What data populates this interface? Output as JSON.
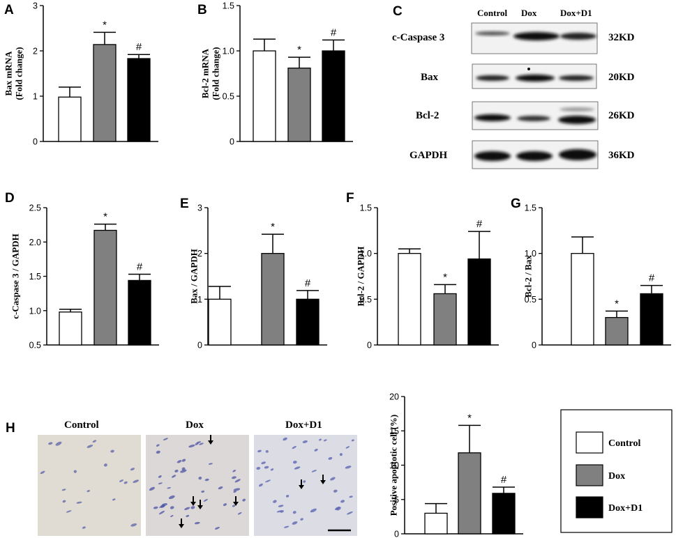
{
  "colors": {
    "Control": "#ffffff",
    "Dox": "#808080",
    "Dox+D1": "#000000"
  },
  "chart_data": [
    {
      "panel": "A",
      "type": "bar",
      "ylabel": "Bax mRNA\n(Fold change)",
      "categories": [
        "Control",
        "Dox",
        "Dox+D1"
      ],
      "values": [
        0.98,
        2.14,
        1.83
      ],
      "errors": [
        0.22,
        0.27,
        0.09
      ],
      "ylim": [
        0,
        3
      ],
      "yticks": [
        "0",
        "1",
        "2",
        "3"
      ],
      "marks": [
        "",
        "*",
        "#"
      ]
    },
    {
      "panel": "B",
      "type": "bar",
      "ylabel": "Bcl-2 mRNA\n(Fold change)",
      "categories": [
        "Control",
        "Dox",
        "Dox+D1"
      ],
      "values": [
        1.0,
        0.81,
        1.0
      ],
      "errors": [
        0.13,
        0.12,
        0.12
      ],
      "ylim": [
        0,
        1.5
      ],
      "yticks": [
        "0",
        "0.5",
        "1.0",
        "1.5"
      ],
      "marks": [
        "",
        "*",
        "#"
      ]
    },
    {
      "panel": "D",
      "type": "bar",
      "ylabel": "c-Caspase 3 / GAPDH",
      "categories": [
        "Control",
        "Dox",
        "Dox+D1"
      ],
      "values": [
        0.98,
        2.17,
        1.44
      ],
      "errors": [
        0.04,
        0.09,
        0.09
      ],
      "ylim": [
        0.5,
        2.5
      ],
      "yticks": [
        "0.5",
        "1.0",
        "1.5",
        "2.0",
        "2.5"
      ],
      "marks": [
        "",
        "*",
        "#"
      ]
    },
    {
      "panel": "E",
      "type": "bar",
      "ylabel": "Bax / GAPDH",
      "categories": [
        "Control",
        "Dox",
        "Dox+D1"
      ],
      "values": [
        1.0,
        2.0,
        1.0
      ],
      "errors": [
        0.28,
        0.42,
        0.19
      ],
      "ylim": [
        0,
        3
      ],
      "yticks": [
        "0",
        "1",
        "2",
        "3"
      ],
      "marks": [
        "",
        "*",
        "#"
      ]
    },
    {
      "panel": "F",
      "type": "bar",
      "ylabel": "Bcl-2 / GAPDH",
      "categories": [
        "Control",
        "Dox",
        "Dox+D1"
      ],
      "values": [
        1.0,
        0.56,
        0.94
      ],
      "errors": [
        0.05,
        0.1,
        0.3
      ],
      "ylim": [
        0,
        1.5
      ],
      "yticks": [
        "0",
        "0.5",
        "1.0",
        "1.5"
      ],
      "marks": [
        "",
        "*",
        "#"
      ]
    },
    {
      "panel": "G",
      "type": "bar",
      "ylabel": "Bcl-2 / Bax",
      "categories": [
        "Control",
        "Dox",
        "Dox+D1"
      ],
      "values": [
        1.0,
        0.3,
        0.56
      ],
      "errors": [
        0.18,
        0.07,
        0.09
      ],
      "ylim": [
        0,
        1.5
      ],
      "yticks": [
        "0",
        "0.5",
        "1.0",
        "1.5"
      ],
      "marks": [
        "",
        "*",
        "#"
      ]
    },
    {
      "panel": "H",
      "type": "bar",
      "ylabel": "Positive apoptotic cell (%)",
      "categories": [
        "Control",
        "Dox",
        "Dox+D1"
      ],
      "values": [
        3.0,
        11.8,
        5.9
      ],
      "errors": [
        1.4,
        4.0,
        0.9
      ],
      "ylim": [
        0,
        20
      ],
      "yticks": [
        "0",
        "5",
        "10",
        "15",
        "20"
      ],
      "marks": [
        "",
        "*",
        "#"
      ]
    }
  ],
  "blot": {
    "panel": "C",
    "lanes": [
      "Control",
      "Dox",
      "Dox+D1"
    ],
    "rows": [
      {
        "protein": "c-Caspase 3",
        "size": "32KD"
      },
      {
        "protein": "Bax",
        "size": "20KD"
      },
      {
        "protein": "Bcl-2",
        "size": "26KD"
      },
      {
        "protein": "GAPDH",
        "size": "36KD"
      }
    ]
  },
  "micrographs": {
    "panel": "H",
    "titles": [
      "Control",
      "Dox",
      "Dox+D1"
    ]
  },
  "legend": [
    "Control",
    "Dox",
    "Dox+D1"
  ]
}
